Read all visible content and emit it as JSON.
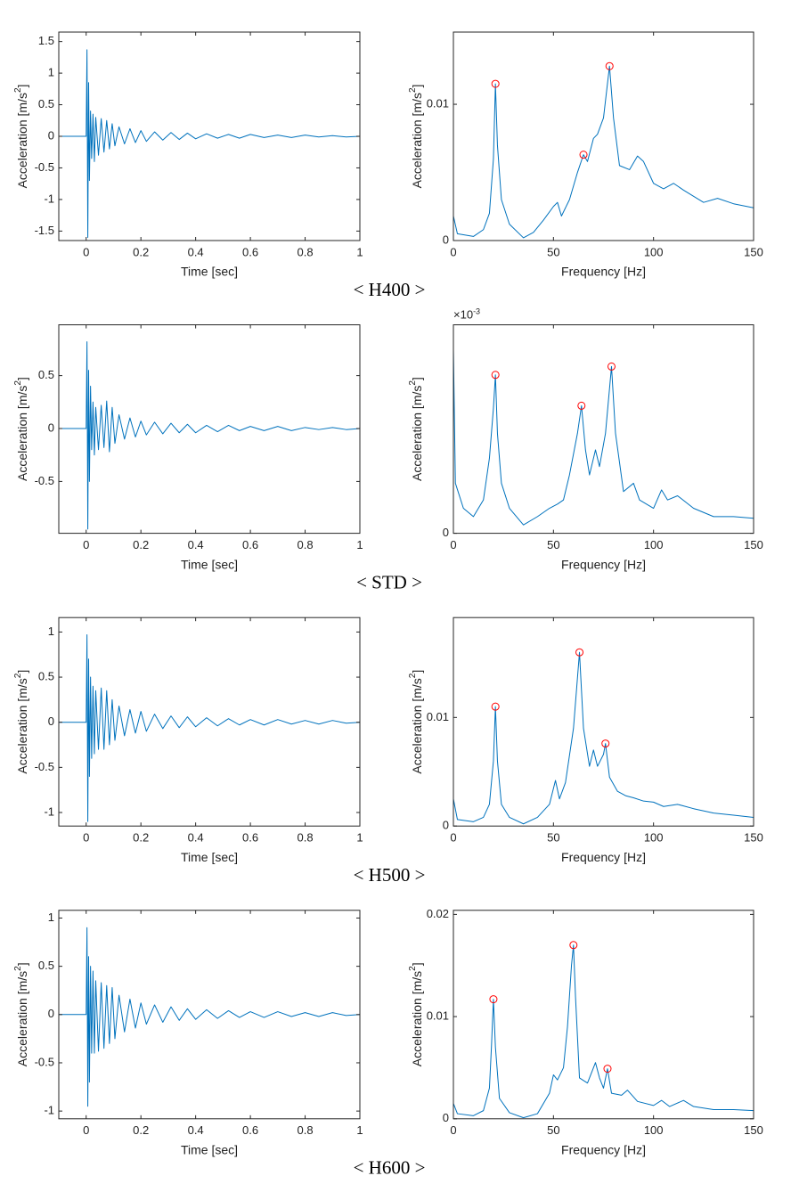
{
  "chart_data": [
    {
      "type": "line",
      "xlabel": "Time [sec]",
      "ylabel_parts": [
        "Acceleration [m/s",
        "2",
        "]"
      ],
      "color": "#0072bd",
      "grid": false,
      "xlim": [
        -0.1,
        1
      ],
      "xticks": [
        0,
        0.2,
        0.4,
        0.6,
        0.8,
        1
      ],
      "ylim": [
        -1.65,
        1.65
      ],
      "yticks": [
        -1.5,
        -1,
        -0.5,
        0,
        0.5,
        1,
        1.5
      ],
      "x": [
        -0.1,
        0,
        0.003,
        0.006,
        0.009,
        0.012,
        0.016,
        0.02,
        0.025,
        0.03,
        0.035,
        0.045,
        0.055,
        0.065,
        0.075,
        0.085,
        0.095,
        0.105,
        0.12,
        0.14,
        0.16,
        0.18,
        0.2,
        0.22,
        0.25,
        0.28,
        0.31,
        0.34,
        0.37,
        0.4,
        0.44,
        0.48,
        0.52,
        0.56,
        0.6,
        0.65,
        0.7,
        0.75,
        0.8,
        0.85,
        0.9,
        0.95,
        1
      ],
      "values": [
        0,
        0,
        1.37,
        -1.6,
        0.85,
        -0.7,
        0.4,
        -0.35,
        0.35,
        -0.4,
        0.3,
        -0.3,
        0.28,
        -0.25,
        0.25,
        -0.2,
        0.2,
        -0.15,
        0.15,
        -0.12,
        0.12,
        -0.1,
        0.09,
        -0.08,
        0.07,
        -0.06,
        0.06,
        -0.05,
        0.05,
        -0.04,
        0.04,
        -0.03,
        0.03,
        -0.03,
        0.03,
        -0.02,
        0.02,
        -0.02,
        0.02,
        -0.01,
        0.01,
        -0.01,
        0
      ]
    },
    {
      "type": "line",
      "xlabel": "Frequency [Hz]",
      "ylabel_parts": [
        "Acceleration [m/s",
        "2",
        "]"
      ],
      "color": "#0072bd",
      "grid": false,
      "xlim": [
        0,
        150
      ],
      "xticks": [
        0,
        50,
        100,
        150
      ],
      "ylim": [
        0,
        0.0153
      ],
      "yticks": [
        0,
        0.01
      ],
      "x": [
        0,
        2,
        10,
        15,
        18,
        20,
        21,
        22,
        24,
        28,
        35,
        40,
        45,
        50,
        52,
        54,
        58,
        62,
        65,
        67,
        70,
        72,
        75,
        78,
        80,
        83,
        88,
        92,
        95,
        100,
        105,
        110,
        115,
        125,
        132,
        140,
        150
      ],
      "values": [
        0.0018,
        0.0005,
        0.0003,
        0.0008,
        0.002,
        0.006,
        0.0115,
        0.007,
        0.003,
        0.0012,
        0.0002,
        0.0006,
        0.0015,
        0.0025,
        0.0028,
        0.0018,
        0.003,
        0.005,
        0.0063,
        0.0058,
        0.0075,
        0.0078,
        0.009,
        0.0128,
        0.009,
        0.0055,
        0.0052,
        0.0062,
        0.0058,
        0.0042,
        0.0038,
        0.0042,
        0.0037,
        0.0028,
        0.0031,
        0.0027,
        0.0024
      ],
      "peaks": {
        "color": "#ff0000",
        "x": [
          21,
          65,
          78
        ],
        "values": [
          0.0115,
          0.0063,
          0.0128
        ]
      }
    },
    {
      "type": "line",
      "xlabel": "Time [sec]",
      "ylabel_parts": [
        "Acceleration [m/s",
        "2",
        "]"
      ],
      "color": "#0072bd",
      "grid": false,
      "xlim": [
        -0.1,
        1
      ],
      "xticks": [
        0,
        0.2,
        0.4,
        0.6,
        0.8,
        1
      ],
      "ylim": [
        -0.99,
        0.98
      ],
      "yticks": [
        -0.5,
        0,
        0.5
      ],
      "x": [
        -0.1,
        0,
        0.003,
        0.006,
        0.009,
        0.012,
        0.016,
        0.02,
        0.025,
        0.03,
        0.035,
        0.045,
        0.055,
        0.065,
        0.075,
        0.085,
        0.095,
        0.105,
        0.12,
        0.14,
        0.16,
        0.18,
        0.2,
        0.22,
        0.25,
        0.28,
        0.31,
        0.34,
        0.37,
        0.4,
        0.44,
        0.48,
        0.52,
        0.56,
        0.6,
        0.65,
        0.7,
        0.75,
        0.8,
        0.85,
        0.9,
        0.95,
        1
      ],
      "values": [
        0,
        0,
        0.82,
        -0.95,
        0.55,
        -0.5,
        0.4,
        -0.2,
        0.25,
        -0.25,
        0.2,
        -0.2,
        0.22,
        -0.18,
        0.26,
        -0.22,
        0.2,
        -0.14,
        0.13,
        -0.1,
        0.1,
        -0.08,
        0.07,
        -0.06,
        0.06,
        -0.05,
        0.05,
        -0.04,
        0.04,
        -0.04,
        0.03,
        -0.03,
        0.03,
        -0.02,
        0.02,
        -0.02,
        0.02,
        -0.02,
        0.01,
        -0.01,
        0.01,
        -0.01,
        0
      ]
    },
    {
      "type": "line",
      "xlabel": "Frequency [Hz]",
      "ylabel_parts": [
        "Acceleration [m/s",
        "2",
        "]"
      ],
      "exponent": [
        "×10",
        "-3"
      ],
      "color": "#0072bd",
      "grid": false,
      "xlim": [
        0,
        150
      ],
      "xticks": [
        0,
        50,
        100,
        150
      ],
      "ylim": [
        0,
        0.0025
      ],
      "yticks": [
        0
      ],
      "x": [
        0,
        1,
        5,
        10,
        15,
        18,
        20,
        21,
        22,
        24,
        28,
        35,
        42,
        48,
        52,
        55,
        58,
        62,
        64,
        66,
        68,
        71,
        73,
        76,
        79,
        81,
        85,
        90,
        93,
        100,
        104,
        107,
        112,
        120,
        130,
        140,
        150
      ],
      "values": [
        0.0022,
        0.0006,
        0.0003,
        0.0002,
        0.0004,
        0.0009,
        0.0015,
        0.0019,
        0.0012,
        0.0006,
        0.0003,
        0.0001,
        0.0002,
        0.0003,
        0.00035,
        0.0004,
        0.0007,
        0.0012,
        0.00153,
        0.001,
        0.0007,
        0.001,
        0.0008,
        0.0012,
        0.002,
        0.0012,
        0.0005,
        0.0006,
        0.0004,
        0.0003,
        0.00052,
        0.0004,
        0.00045,
        0.0003,
        0.0002,
        0.0002,
        0.00018
      ],
      "peaks": {
        "color": "#ff0000",
        "x": [
          21,
          64,
          79
        ],
        "values": [
          0.0019,
          0.00153,
          0.002
        ]
      }
    },
    {
      "type": "line",
      "xlabel": "Time [sec]",
      "ylabel_parts": [
        "Acceleration [m/s",
        "2",
        "]"
      ],
      "color": "#0072bd",
      "grid": false,
      "xlim": [
        -0.1,
        1
      ],
      "xticks": [
        0,
        0.2,
        0.4,
        0.6,
        0.8,
        1
      ],
      "ylim": [
        -1.15,
        1.16
      ],
      "yticks": [
        -1,
        -0.5,
        0,
        0.5,
        1
      ],
      "x": [
        -0.1,
        0,
        0.003,
        0.006,
        0.009,
        0.012,
        0.016,
        0.02,
        0.025,
        0.03,
        0.035,
        0.045,
        0.055,
        0.065,
        0.075,
        0.085,
        0.095,
        0.105,
        0.12,
        0.14,
        0.16,
        0.18,
        0.2,
        0.22,
        0.25,
        0.28,
        0.31,
        0.34,
        0.37,
        0.4,
        0.44,
        0.48,
        0.52,
        0.56,
        0.6,
        0.65,
        0.7,
        0.75,
        0.8,
        0.85,
        0.9,
        0.95,
        1
      ],
      "values": [
        0,
        0,
        0.97,
        -1.1,
        0.7,
        -0.6,
        0.5,
        -0.4,
        0.4,
        -0.35,
        0.35,
        -0.3,
        0.38,
        -0.3,
        0.35,
        -0.25,
        0.25,
        -0.2,
        0.18,
        -0.15,
        0.14,
        -0.12,
        0.12,
        -0.1,
        0.09,
        -0.07,
        0.07,
        -0.06,
        0.06,
        -0.05,
        0.05,
        -0.04,
        0.04,
        -0.03,
        0.03,
        -0.03,
        0.03,
        -0.02,
        0.02,
        -0.02,
        0.02,
        -0.01,
        0
      ]
    },
    {
      "type": "line",
      "xlabel": "Frequency [Hz]",
      "ylabel_parts": [
        "Acceleration [m/s",
        "2",
        "]"
      ],
      "color": "#0072bd",
      "grid": false,
      "xlim": [
        0,
        150
      ],
      "xticks": [
        0,
        50,
        100,
        150
      ],
      "ylim": [
        0,
        0.0192
      ],
      "yticks": [
        0,
        0.01
      ],
      "x": [
        0,
        2,
        10,
        15,
        18,
        20,
        21,
        22,
        24,
        28,
        35,
        42,
        48,
        51,
        53,
        56,
        60,
        63,
        65,
        68,
        70,
        72,
        75,
        76,
        78,
        82,
        86,
        90,
        95,
        100,
        105,
        112,
        120,
        130,
        140,
        150
      ],
      "values": [
        0.0025,
        0.0006,
        0.0004,
        0.0008,
        0.002,
        0.006,
        0.011,
        0.006,
        0.002,
        0.0008,
        0.0002,
        0.0008,
        0.002,
        0.0042,
        0.0025,
        0.004,
        0.009,
        0.016,
        0.009,
        0.0055,
        0.007,
        0.0055,
        0.0066,
        0.0076,
        0.0045,
        0.0032,
        0.0028,
        0.0026,
        0.0023,
        0.0022,
        0.0018,
        0.002,
        0.0016,
        0.0012,
        0.001,
        0.0008
      ],
      "peaks": {
        "color": "#ff0000",
        "x": [
          21,
          63,
          76
        ],
        "values": [
          0.011,
          0.016,
          0.0076
        ]
      }
    },
    {
      "type": "line",
      "xlabel": "Time [sec]",
      "ylabel_parts": [
        "Acceleration [m/s",
        "2",
        "]"
      ],
      "color": "#0072bd",
      "grid": false,
      "xlim": [
        -0.1,
        1
      ],
      "xticks": [
        0,
        0.2,
        0.4,
        0.6,
        0.8,
        1
      ],
      "ylim": [
        -1.08,
        1.08
      ],
      "yticks": [
        -1,
        -0.5,
        0,
        0.5,
        1
      ],
      "x": [
        -0.1,
        0,
        0.003,
        0.006,
        0.009,
        0.012,
        0.016,
        0.02,
        0.025,
        0.03,
        0.035,
        0.045,
        0.055,
        0.065,
        0.075,
        0.085,
        0.095,
        0.105,
        0.12,
        0.14,
        0.16,
        0.18,
        0.2,
        0.22,
        0.25,
        0.28,
        0.31,
        0.34,
        0.37,
        0.4,
        0.44,
        0.48,
        0.52,
        0.56,
        0.6,
        0.65,
        0.7,
        0.75,
        0.8,
        0.85,
        0.9,
        0.95,
        1
      ],
      "values": [
        0,
        0,
        0.9,
        -0.95,
        0.6,
        -0.7,
        0.5,
        -0.4,
        0.45,
        -0.4,
        0.35,
        -0.38,
        0.33,
        -0.35,
        0.3,
        -0.3,
        0.28,
        -0.25,
        0.2,
        -0.18,
        0.16,
        -0.14,
        0.12,
        -0.1,
        0.1,
        -0.08,
        0.08,
        -0.06,
        0.06,
        -0.05,
        0.05,
        -0.04,
        0.04,
        -0.03,
        0.03,
        -0.03,
        0.03,
        -0.02,
        0.02,
        -0.02,
        0.02,
        -0.01,
        0
      ]
    },
    {
      "type": "line",
      "xlabel": "Frequency [Hz]",
      "ylabel_parts": [
        "Acceleration [m/s",
        "2",
        "]"
      ],
      "color": "#0072bd",
      "grid": false,
      "xlim": [
        0,
        150
      ],
      "xticks": [
        0,
        50,
        100,
        150
      ],
      "ylim": [
        0,
        0.0204
      ],
      "yticks": [
        0,
        0.01,
        0.02
      ],
      "x": [
        0,
        2,
        10,
        15,
        18,
        19,
        20,
        21,
        23,
        28,
        35,
        42,
        48,
        50,
        52,
        55,
        57,
        59,
        60,
        61,
        63,
        67,
        71,
        73,
        75,
        77,
        79,
        84,
        87,
        92,
        100,
        104,
        108,
        115,
        120,
        130,
        140,
        150
      ],
      "values": [
        0.0015,
        0.0005,
        0.0003,
        0.0008,
        0.003,
        0.007,
        0.0117,
        0.007,
        0.002,
        0.0006,
        0.0001,
        0.0005,
        0.0025,
        0.0043,
        0.0038,
        0.005,
        0.009,
        0.015,
        0.017,
        0.012,
        0.004,
        0.0035,
        0.0055,
        0.004,
        0.003,
        0.0049,
        0.0025,
        0.0023,
        0.0028,
        0.0017,
        0.0013,
        0.0018,
        0.0012,
        0.0018,
        0.0012,
        0.0009,
        0.0009,
        0.0008
      ],
      "peaks": {
        "color": "#ff0000",
        "x": [
          20,
          60,
          77
        ],
        "values": [
          0.0117,
          0.017,
          0.0049
        ]
      }
    }
  ],
  "captions": [
    "< H400 >",
    "< STD >",
    "< H500 >",
    "< H600 >"
  ]
}
